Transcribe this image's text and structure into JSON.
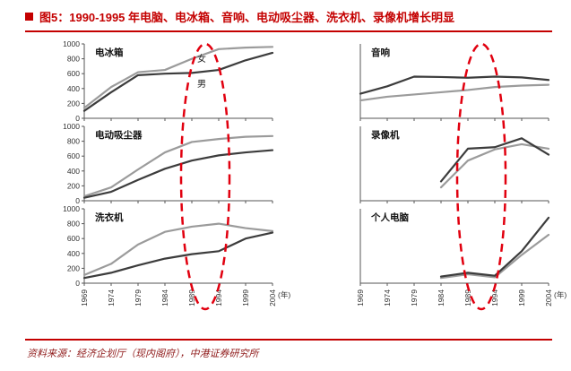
{
  "header": {
    "figure_title": "图5：1990-1995 年电脑、电冰箱、音响、电动吸尘器、洗衣机、录像机增长明显"
  },
  "footer": {
    "source": "资料来源：经济企划厅（现内阁府），中港证券研究所"
  },
  "colors": {
    "accent_red": "#c40000",
    "source_red": "#8f1a1a",
    "highlight_red": "#e1000f",
    "line_female": "#9b9b9b",
    "line_male": "#3c3c3c"
  },
  "chart_data": {
    "type": "line",
    "x_categories": [
      "1969",
      "1974",
      "1979",
      "1984",
      "1989",
      "1994",
      "1999",
      "2004"
    ],
    "x_unit": "(年)",
    "ylim": [
      0,
      1000
    ],
    "y_ticks": [
      0,
      200,
      400,
      600,
      800,
      1000
    ],
    "legend": {
      "female": "女",
      "male": "男"
    },
    "highlight_region": {
      "x_from": "1989",
      "x_to": "1994",
      "style": "dashed-ellipse"
    },
    "charts": [
      {
        "name": "电冰箱",
        "show_y_labels": true,
        "show_x_labels": false,
        "labels": [
          {
            "text": "女",
            "fx": 0.6,
            "fy": 0.24
          },
          {
            "text": "男",
            "fx": 0.6,
            "fy": 0.58
          }
        ],
        "series": [
          {
            "label": "女",
            "tone": "female",
            "values": [
              140,
              420,
              620,
              650,
              800,
              930,
              950,
              960
            ]
          },
          {
            "label": "男",
            "tone": "male",
            "values": [
              100,
              350,
              580,
              600,
              610,
              650,
              780,
              880
            ]
          }
        ]
      },
      {
        "name": "电动吸尘器",
        "show_y_labels": true,
        "show_x_labels": false,
        "labels": [],
        "series": [
          {
            "label": "女",
            "tone": "female",
            "values": [
              60,
              180,
              420,
              650,
              790,
              830,
              860,
              870
            ]
          },
          {
            "label": "男",
            "tone": "male",
            "values": [
              40,
              120,
              280,
              430,
              540,
              610,
              650,
              680
            ]
          }
        ]
      },
      {
        "name": "洗衣机",
        "show_y_labels": true,
        "show_x_labels": true,
        "labels": [],
        "series": [
          {
            "label": "女",
            "tone": "female",
            "values": [
              110,
              260,
              520,
              690,
              760,
              800,
              740,
              700
            ]
          },
          {
            "label": "男",
            "tone": "male",
            "values": [
              70,
              140,
              240,
              330,
              390,
              430,
              600,
              680
            ]
          }
        ]
      },
      {
        "name": "音响",
        "show_y_labels": false,
        "show_x_labels": false,
        "labels": [],
        "series": [
          {
            "label": "女",
            "tone": "female",
            "values": [
              240,
              290,
              320,
              350,
              380,
              420,
              440,
              450
            ]
          },
          {
            "label": "男",
            "tone": "male",
            "values": [
              330,
              430,
              560,
              555,
              545,
              560,
              550,
              515
            ]
          }
        ]
      },
      {
        "name": "录像机",
        "show_y_labels": false,
        "show_x_labels": false,
        "labels": [],
        "series": [
          {
            "label": "女",
            "tone": "female",
            "values": [
              null,
              null,
              null,
              180,
              540,
              690,
              760,
              700
            ]
          },
          {
            "label": "男",
            "tone": "male",
            "values": [
              null,
              null,
              null,
              260,
              700,
              720,
              840,
              620
            ]
          }
        ]
      },
      {
        "name": "个人电脑",
        "show_y_labels": false,
        "show_x_labels": true,
        "labels": [],
        "series": [
          {
            "label": "女",
            "tone": "female",
            "values": [
              null,
              null,
              null,
              70,
              120,
              80,
              380,
              650
            ]
          },
          {
            "label": "男",
            "tone": "male",
            "values": [
              null,
              null,
              null,
              90,
              140,
              100,
              430,
              880
            ]
          }
        ]
      }
    ]
  }
}
